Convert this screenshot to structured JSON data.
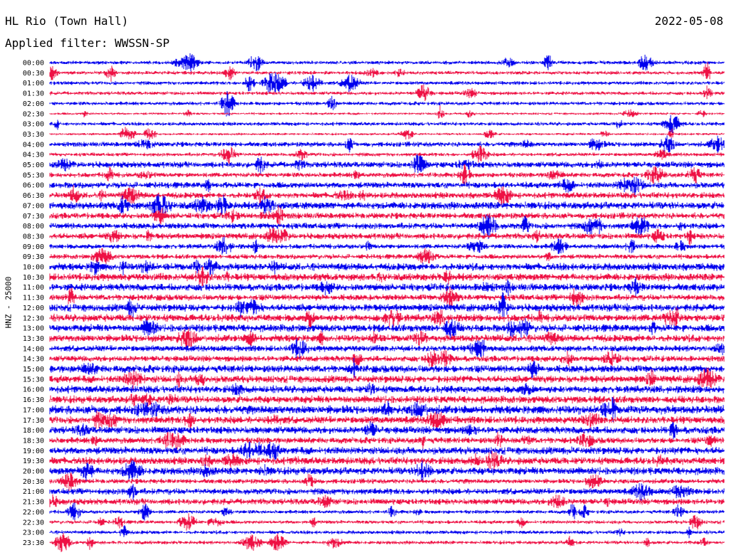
{
  "header": {
    "station": "HL Rio (Town Hall)",
    "date": "2022-05-08",
    "filter": "Applied filter: WWSSN-SP"
  },
  "chart_data": {
    "type": "line",
    "title": "HL Rio (Town Hall)",
    "subtitle": "Applied filter: WWSSN-SP",
    "ylabel": "HNZ - 25000",
    "xlabel": "",
    "rows": [
      "00:00",
      "00:30",
      "01:00",
      "01:30",
      "02:00",
      "02:30",
      "03:00",
      "03:30",
      "04:00",
      "04:30",
      "05:00",
      "05:30",
      "06:00",
      "06:30",
      "07:00",
      "07:30",
      "08:00",
      "08:30",
      "09:00",
      "09:30",
      "10:00",
      "10:30",
      "11:00",
      "11:30",
      "12:00",
      "12:30",
      "13:00",
      "13:30",
      "14:00",
      "14:30",
      "15:00",
      "15:30",
      "16:00",
      "16:30",
      "17:00",
      "17:30",
      "18:00",
      "18:30",
      "19:00",
      "19:30",
      "20:00",
      "20:30",
      "21:00",
      "21:30",
      "22:00",
      "22:30",
      "23:00",
      "23:30"
    ],
    "series_colors": [
      "#0000ee",
      "#ee1144"
    ],
    "row_amplitude": [
      3,
      3,
      3,
      3,
      3,
      2,
      3,
      2,
      4,
      3,
      5,
      4,
      5,
      5,
      6,
      5,
      5,
      5,
      4,
      4,
      6,
      6,
      6,
      5,
      6,
      6,
      6,
      6,
      5,
      5,
      6,
      6,
      6,
      6,
      7,
      6,
      6,
      5,
      6,
      6,
      6,
      4,
      5,
      5,
      3,
      3,
      3,
      3
    ],
    "legend": "none",
    "grid": false
  }
}
